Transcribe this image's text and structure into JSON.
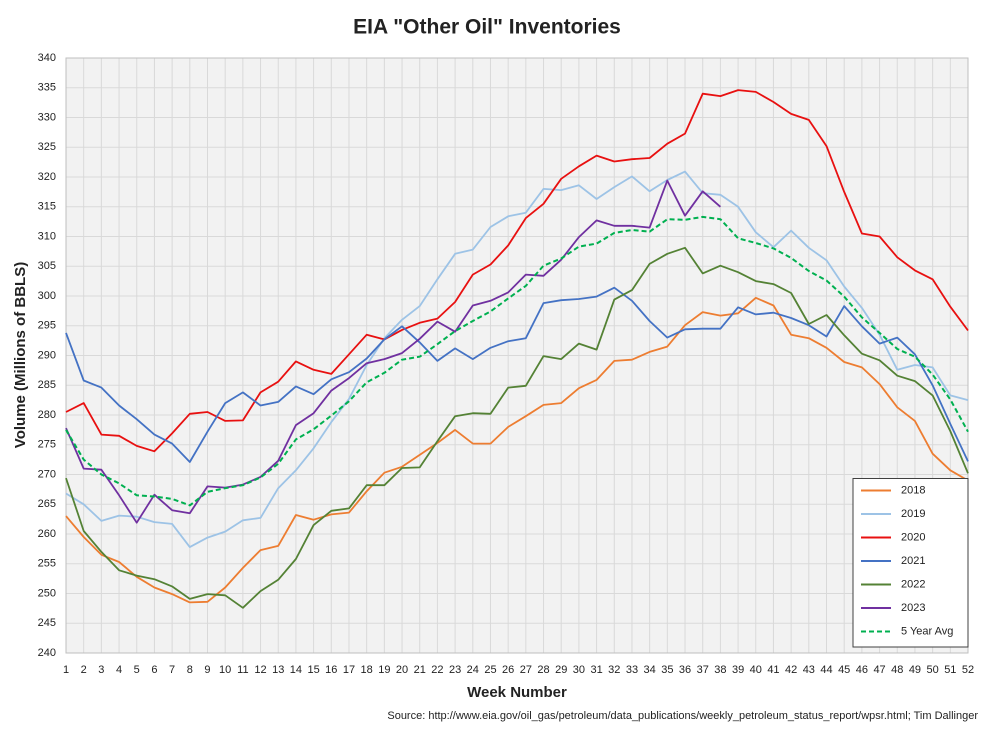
{
  "chart_data": {
    "type": "line",
    "title": "EIA \"Other Oil\" Inventories",
    "xlabel": "Week Number",
    "ylabel": "Volume (Millions of BBLS)",
    "source": "Source: http://www.eia.gov/oil_gas/petroleum/data_publications/weekly_petroleum_status_report/wpsr.html; Tim Dallinger",
    "x": [
      1,
      2,
      3,
      4,
      5,
      6,
      7,
      8,
      9,
      10,
      11,
      12,
      13,
      14,
      15,
      16,
      17,
      18,
      19,
      20,
      21,
      22,
      23,
      24,
      25,
      26,
      27,
      28,
      29,
      30,
      31,
      32,
      33,
      34,
      35,
      36,
      37,
      38,
      39,
      40,
      41,
      42,
      43,
      44,
      45,
      46,
      47,
      48,
      49,
      50,
      51,
      52
    ],
    "xlim": [
      1,
      52
    ],
    "xticks": [
      1,
      2,
      3,
      4,
      5,
      6,
      7,
      8,
      9,
      10,
      11,
      12,
      13,
      14,
      15,
      16,
      17,
      18,
      19,
      20,
      21,
      22,
      23,
      24,
      25,
      26,
      27,
      28,
      29,
      30,
      31,
      32,
      33,
      34,
      35,
      36,
      37,
      38,
      39,
      40,
      41,
      42,
      43,
      44,
      45,
      46,
      47,
      48,
      49,
      50,
      51,
      52
    ],
    "ylim": [
      240,
      340
    ],
    "yticks": [
      240,
      245,
      250,
      255,
      260,
      265,
      270,
      275,
      280,
      285,
      290,
      295,
      300,
      305,
      310,
      315,
      320,
      325,
      330,
      335,
      340
    ],
    "grid": true,
    "legend": "lower right",
    "series": [
      {
        "name": "2018",
        "color": "#ed7d31",
        "values": [
          263,
          259.5,
          256.5,
          255.3,
          252.8,
          251,
          249.9,
          248.5,
          248.6,
          251,
          254.3,
          257.3,
          258,
          263.2,
          262.4,
          263.3,
          263.6,
          267.2,
          270.3,
          271.3,
          273.3,
          275.3,
          277.5,
          275.2,
          275.2,
          278,
          279.8,
          281.7,
          282,
          284.5,
          285.9,
          289.1,
          289.3,
          290.6,
          291.5,
          295.1,
          297.3,
          296.7,
          297.1,
          299.7,
          298.4,
          293.5,
          292.9,
          291.3,
          288.9,
          288,
          285.2,
          281.3,
          279,
          273.5,
          270.7,
          269
        ]
      },
      {
        "name": "2019",
        "color": "#9dc3e6",
        "values": [
          266.8,
          265,
          262.2,
          263.1,
          262.9,
          262,
          261.7,
          257.8,
          259.4,
          260.4,
          262.3,
          262.7,
          267.7,
          270.7,
          274.4,
          278.8,
          282.7,
          288.4,
          292.9,
          296,
          298.3,
          302.8,
          307.1,
          307.8,
          311.6,
          313.4,
          314,
          318,
          317.8,
          318.6,
          316.3,
          318.3,
          320.1,
          317.6,
          319.5,
          320.9,
          317.3,
          317,
          315,
          310.7,
          308.2,
          311,
          308.1,
          306,
          301.6,
          298,
          293.5,
          287.6,
          288.4,
          288,
          283.3,
          282.5
        ]
      },
      {
        "name": "2020",
        "color": "#e81010",
        "values": [
          280.5,
          282,
          276.7,
          276.5,
          274.8,
          273.9,
          276.9,
          280.2,
          280.5,
          279,
          279.1,
          283.8,
          285.6,
          289,
          287.6,
          286.9,
          290.2,
          293.5,
          292.7,
          294.3,
          295.5,
          296.2,
          299,
          303.6,
          305.3,
          308.5,
          313.1,
          315.5,
          319.7,
          321.8,
          323.6,
          322.6,
          323,
          323.2,
          325.6,
          327.3,
          334,
          333.6,
          334.6,
          334.3,
          332.6,
          330.6,
          329.6,
          325.2,
          317.5,
          310.5,
          310,
          306.5,
          304.3,
          302.8,
          298.2,
          294.2
        ]
      },
      {
        "name": "2021",
        "color": "#4472c4",
        "values": [
          293.8,
          285.8,
          284.6,
          281.6,
          279.3,
          276.7,
          275.2,
          272.1,
          277.2,
          282,
          283.8,
          281.6,
          282.2,
          284.8,
          283.5,
          286,
          287.2,
          289.5,
          292.7,
          294.9,
          292.2,
          289.1,
          291.2,
          289.4,
          291.3,
          292.4,
          292.9,
          298.8,
          299.3,
          299.5,
          299.9,
          301.4,
          299.2,
          295.8,
          293,
          294.4,
          294.5,
          294.5,
          298.1,
          296.9,
          297.2,
          296.3,
          295.1,
          293.2,
          298.3,
          294.9,
          292,
          293,
          290.2,
          285,
          278.5,
          272.2
        ]
      },
      {
        "name": "2022",
        "color": "#548235",
        "values": [
          269.4,
          260.5,
          257,
          253.9,
          253,
          252.4,
          251.2,
          249.1,
          249.9,
          249.7,
          247.6,
          250.4,
          252.3,
          255.8,
          261.5,
          263.9,
          264.3,
          268.2,
          268.2,
          271.1,
          271.2,
          275.6,
          279.8,
          280.3,
          280.2,
          284.6,
          284.9,
          289.9,
          289.4,
          292,
          291,
          299.4,
          301,
          305.4,
          307.1,
          308.1,
          303.8,
          305.1,
          304,
          302.5,
          302,
          300.5,
          295.3,
          296.8,
          293.4,
          290.3,
          289.2,
          286.6,
          285.7,
          283.3,
          277.3,
          270.2
        ]
      },
      {
        "name": "2023",
        "color": "#7030a0",
        "values": [
          277.8,
          271,
          270.8,
          266.5,
          261.9,
          266.6,
          264,
          263.5,
          268,
          267.8,
          268.3,
          269.6,
          272.3,
          278.3,
          280.3,
          284.1,
          286.2,
          288.7,
          289.4,
          290.4,
          292.8,
          295.7,
          294,
          298.4,
          299.2,
          300.6,
          303.6,
          303.4,
          306.1,
          309.9,
          312.7,
          311.8,
          311.8,
          311.5,
          319.4,
          313.5,
          317.6,
          315,
          null,
          null,
          null,
          null,
          null,
          null,
          null,
          null,
          null,
          null,
          null,
          null,
          null,
          null
        ]
      },
      {
        "name": "5 Year Avg",
        "color": "#00b050",
        "dashed": true,
        "values": [
          277.5,
          272.5,
          270,
          268.5,
          266.5,
          266.3,
          265.9,
          264.8,
          267.1,
          267.7,
          268.2,
          269.5,
          271.8,
          275.9,
          277.6,
          279.9,
          282.3,
          285.5,
          287.1,
          289.3,
          289.8,
          291.9,
          294.1,
          295.8,
          297.4,
          299.6,
          301.7,
          305.1,
          306.3,
          308.3,
          308.8,
          310.6,
          311.1,
          310.8,
          312.9,
          312.8,
          313.3,
          312.9,
          309.7,
          308.9,
          308,
          306.4,
          304.2,
          302.6,
          299.9,
          296.4,
          293.8,
          291.1,
          289.8,
          286.8,
          282.6,
          277.2
        ]
      }
    ]
  }
}
